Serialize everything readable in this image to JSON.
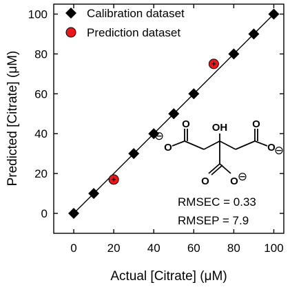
{
  "chart_data": {
    "type": "scatter",
    "xlabel": "Actual [Citrate] (μM)",
    "ylabel": "Predicted [Citrate] (μM)",
    "xlim": [
      -10,
      105
    ],
    "ylim": [
      -10,
      105
    ],
    "x_ticks": [
      0,
      20,
      40,
      60,
      80,
      100
    ],
    "y_ticks": [
      0,
      20,
      40,
      60,
      80,
      100
    ],
    "legend_position": "top-left",
    "fit_line": {
      "from": [
        0,
        0
      ],
      "to": [
        100,
        100
      ],
      "color": "#000000"
    },
    "series": [
      {
        "name": "Calibration dataset",
        "marker": "diamond",
        "color": "#000000",
        "points": [
          {
            "x": 0,
            "y": 0
          },
          {
            "x": 10,
            "y": 10
          },
          {
            "x": 30,
            "y": 30
          },
          {
            "x": 40,
            "y": 40
          },
          {
            "x": 50,
            "y": 50
          },
          {
            "x": 60,
            "y": 60
          },
          {
            "x": 80,
            "y": 80
          },
          {
            "x": 90,
            "y": 90
          },
          {
            "x": 100,
            "y": 100
          }
        ]
      },
      {
        "name": "Prediction dataset",
        "marker": "circle",
        "color": "#e8191c",
        "points": [
          {
            "x": 20,
            "y": 17
          },
          {
            "x": 70,
            "y": 75
          }
        ]
      }
    ],
    "annotations": {
      "rmsec": "RMSEC = 0.33",
      "rmsep": "RMSEP = 7.9"
    },
    "molecule": {
      "name_labels": {
        "hydroxyl": "OH",
        "oxygen": "O",
        "charge": "⊖"
      }
    }
  }
}
